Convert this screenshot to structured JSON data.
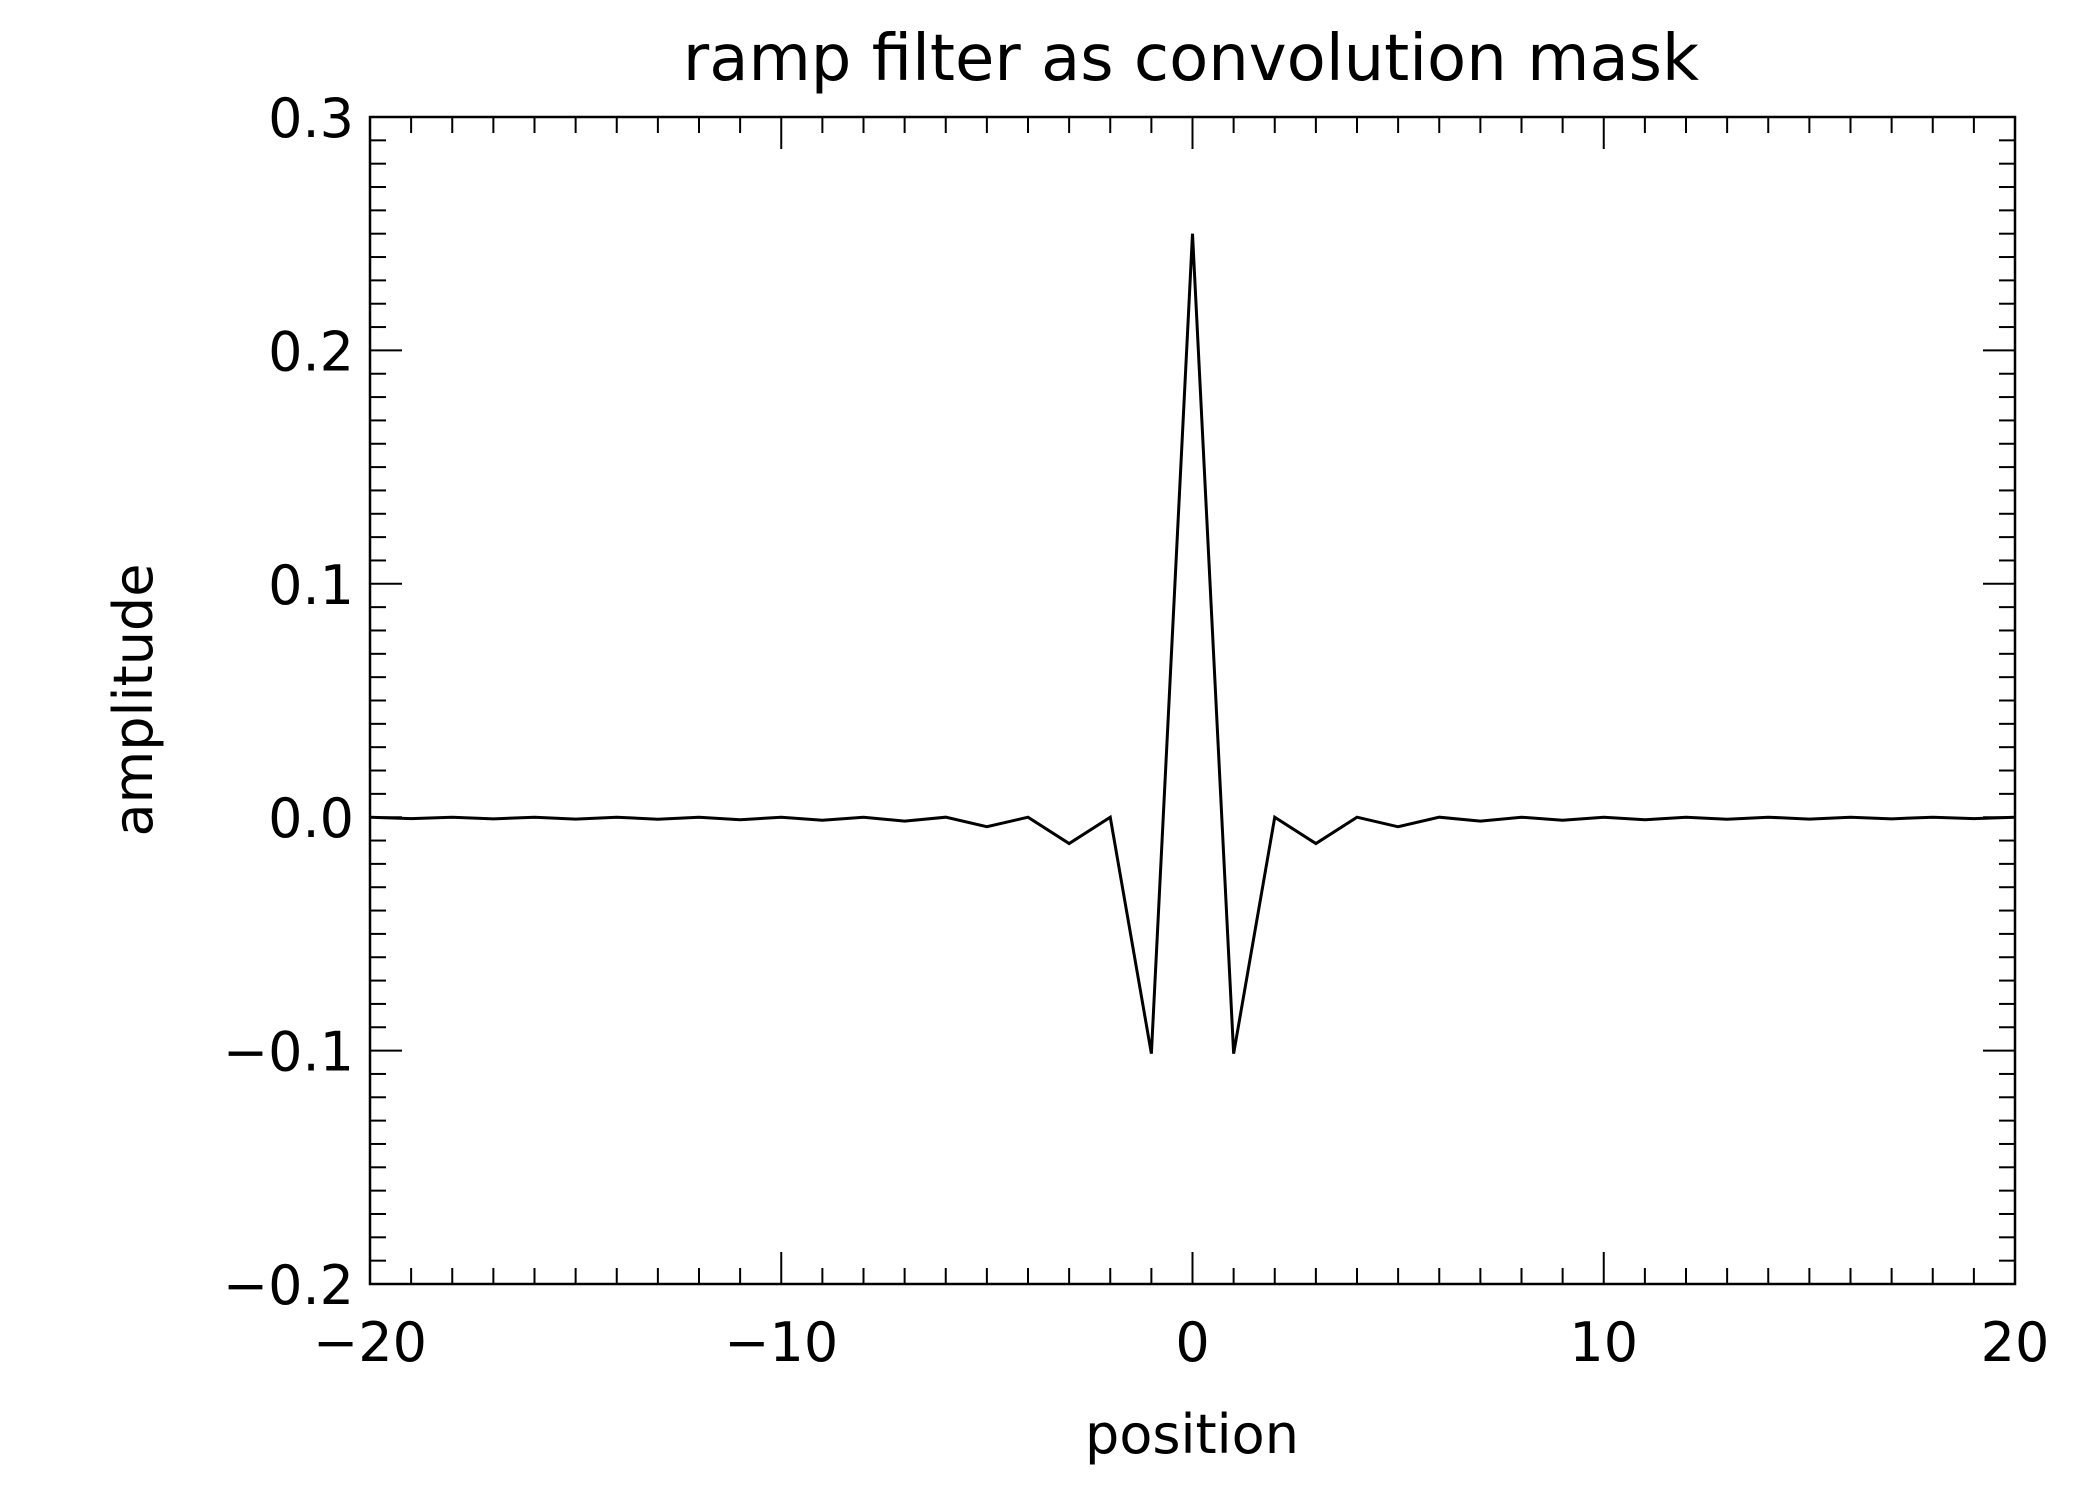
{
  "chart_data": {
    "type": "line",
    "title": "ramp filter as convolution mask",
    "xlabel": "position",
    "ylabel": "amplitude",
    "xlim": [
      -20,
      20
    ],
    "ylim": [
      -0.2,
      0.3
    ],
    "xticks": [
      -20,
      -10,
      0,
      10,
      20
    ],
    "xtick_labels": [
      "−20",
      "−10",
      "0",
      "10",
      "20"
    ],
    "yticks": [
      -0.2,
      -0.1,
      0.0,
      0.1,
      0.2,
      0.3
    ],
    "ytick_labels": [
      "−0.2",
      "−0.1",
      "0.0",
      "0.1",
      "0.2",
      "0.3"
    ],
    "x_minor_step": 1,
    "y_minor_step": 0.01,
    "grid": false,
    "line_color": "#000000",
    "series": [
      {
        "x": [
          -20,
          -19,
          -18,
          -17,
          -16,
          -15,
          -14,
          -13,
          -12,
          -11,
          -10,
          -9,
          -8,
          -7,
          -6,
          -5,
          -4,
          -3,
          -2,
          -1,
          0,
          1,
          2,
          3,
          4,
          5,
          6,
          7,
          8,
          9,
          10,
          11,
          12,
          13,
          14,
          15,
          16,
          17,
          18,
          19,
          20
        ],
        "y": [
          0,
          -0.0006,
          0,
          -0.0007,
          0,
          -0.0008,
          0,
          -0.0009,
          0,
          -0.0011,
          0,
          -0.0013,
          0,
          -0.0017,
          0,
          -0.0041,
          0,
          -0.0113,
          0,
          -0.1013,
          0.25,
          -0.1013,
          0,
          -0.0113,
          0,
          -0.0041,
          0,
          -0.0017,
          0,
          -0.0013,
          0,
          -0.0011,
          0,
          -0.0009,
          0,
          -0.0008,
          0,
          -0.0007,
          0,
          -0.0006,
          0
        ]
      }
    ]
  }
}
